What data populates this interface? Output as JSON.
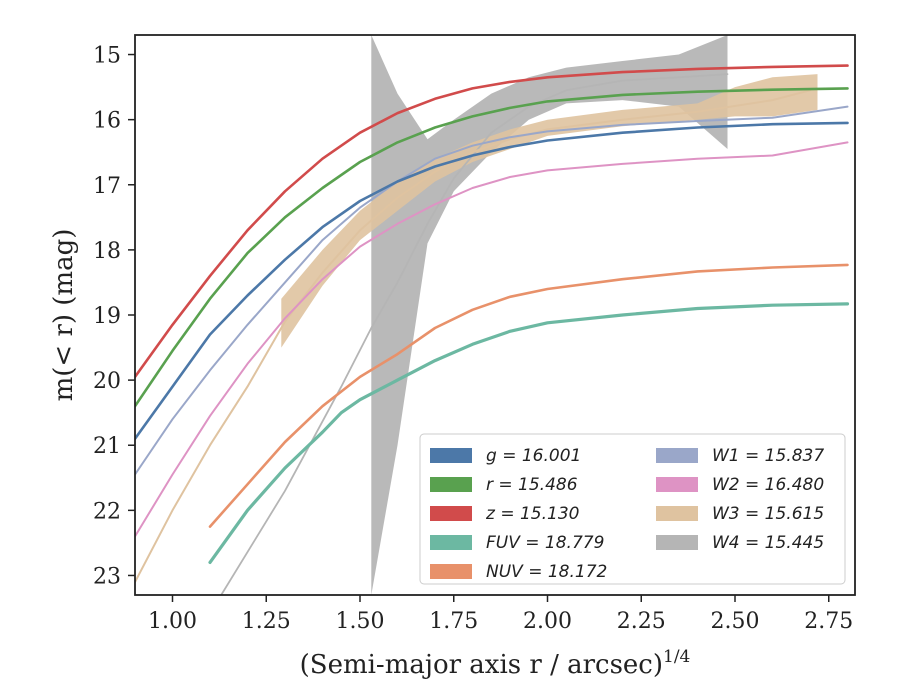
{
  "chart_data": {
    "type": "line",
    "xlabel": "(Semi-major axis r / arcsec)",
    "xlabel_exp": "1/4",
    "ylabel": "m(< r) (mag)",
    "xlim": [
      0.9,
      2.82
    ],
    "ylim": [
      23.3,
      14.7
    ],
    "y_inverted": true,
    "xticks": [
      "1.00",
      "1.25",
      "1.50",
      "1.75",
      "2.00",
      "2.25",
      "2.50",
      "2.75"
    ],
    "yticks": [
      "15",
      "16",
      "17",
      "18",
      "19",
      "20",
      "21",
      "22",
      "23"
    ],
    "grid": false,
    "legend_position": "lower-right",
    "legend_columns": 2,
    "series": [
      {
        "name": "g",
        "value": "16.001",
        "color": "#4c78a8",
        "x": [
          0.9,
          1.0,
          1.1,
          1.2,
          1.3,
          1.4,
          1.5,
          1.6,
          1.7,
          1.8,
          1.9,
          2.0,
          2.2,
          2.4,
          2.6,
          2.8
        ],
        "y": [
          20.9,
          20.1,
          19.3,
          18.7,
          18.15,
          17.65,
          17.25,
          16.95,
          16.72,
          16.55,
          16.42,
          16.32,
          16.2,
          16.12,
          16.07,
          16.05
        ]
      },
      {
        "name": "r",
        "value": "15.486",
        "color": "#59a14f",
        "x": [
          0.9,
          1.0,
          1.1,
          1.2,
          1.3,
          1.4,
          1.5,
          1.6,
          1.7,
          1.8,
          1.9,
          2.0,
          2.2,
          2.4,
          2.6,
          2.8
        ],
        "y": [
          20.4,
          19.55,
          18.75,
          18.05,
          17.5,
          17.05,
          16.65,
          16.35,
          16.12,
          15.95,
          15.82,
          15.72,
          15.62,
          15.57,
          15.54,
          15.52
        ]
      },
      {
        "name": "z",
        "value": "15.130",
        "color": "#d14b4b",
        "x": [
          0.9,
          1.0,
          1.1,
          1.2,
          1.3,
          1.4,
          1.5,
          1.6,
          1.7,
          1.8,
          1.9,
          2.0,
          2.2,
          2.4,
          2.6,
          2.8
        ],
        "y": [
          19.95,
          19.15,
          18.4,
          17.7,
          17.1,
          16.6,
          16.2,
          15.9,
          15.68,
          15.52,
          15.42,
          15.35,
          15.27,
          15.22,
          15.19,
          15.17
        ]
      },
      {
        "name": "FUV",
        "value": "18.779",
        "color": "#6cb8a2",
        "x": [
          1.1,
          1.2,
          1.3,
          1.4,
          1.45,
          1.5,
          1.6,
          1.7,
          1.8,
          1.9,
          2.0,
          2.2,
          2.4,
          2.6,
          2.8
        ],
        "y": [
          22.8,
          22.0,
          21.35,
          20.8,
          20.5,
          20.3,
          20.0,
          19.7,
          19.45,
          19.25,
          19.12,
          19.0,
          18.9,
          18.85,
          18.83
        ]
      },
      {
        "name": "NUV",
        "value": "18.172",
        "color": "#e8916a",
        "x": [
          1.1,
          1.2,
          1.3,
          1.4,
          1.5,
          1.6,
          1.7,
          1.8,
          1.9,
          2.0,
          2.2,
          2.4,
          2.6,
          2.8
        ],
        "y": [
          22.25,
          21.6,
          20.95,
          20.4,
          19.95,
          19.6,
          19.2,
          18.92,
          18.72,
          18.6,
          18.45,
          18.33,
          18.27,
          18.23
        ]
      },
      {
        "name": "W1",
        "value": "15.837",
        "color": "#9aa7c9",
        "x": [
          0.9,
          1.0,
          1.1,
          1.2,
          1.3,
          1.4,
          1.5,
          1.6,
          1.7,
          1.8,
          1.9,
          2.0,
          2.2,
          2.4,
          2.6,
          2.8
        ],
        "y": [
          21.45,
          20.6,
          19.85,
          19.15,
          18.5,
          17.85,
          17.35,
          16.95,
          16.6,
          16.4,
          16.27,
          16.18,
          16.08,
          16.02,
          15.97,
          15.8
        ]
      },
      {
        "name": "W2",
        "value": "16.480",
        "color": "#de93c4",
        "x": [
          0.9,
          1.0,
          1.1,
          1.2,
          1.3,
          1.4,
          1.5,
          1.6,
          1.7,
          1.8,
          1.9,
          2.0,
          2.2,
          2.4,
          2.6,
          2.8
        ],
        "y": [
          22.4,
          21.45,
          20.55,
          19.75,
          19.05,
          18.45,
          17.95,
          17.6,
          17.3,
          17.05,
          16.88,
          16.78,
          16.68,
          16.6,
          16.55,
          16.35
        ]
      },
      {
        "name": "W3",
        "value": "15.615",
        "color": "#dfc3a0",
        "x": [
          0.9,
          1.0,
          1.1,
          1.2,
          1.3,
          1.4,
          1.5,
          1.6,
          1.7,
          1.8,
          1.9,
          2.0,
          2.2,
          2.4,
          2.6,
          2.7
        ],
        "y": [
          23.1,
          22.0,
          21.0,
          20.1,
          19.1,
          18.35,
          17.7,
          17.2,
          16.8,
          16.5,
          16.3,
          16.15,
          16.0,
          15.88,
          15.7,
          15.55
        ]
      },
      {
        "name": "W4",
        "value": "15.445",
        "color": "#b5b5b5",
        "x": [
          1.13,
          1.3,
          1.45,
          1.53,
          1.6,
          1.68,
          1.75,
          1.85,
          1.95,
          2.05,
          2.2,
          2.35,
          2.48
        ],
        "y": [
          23.3,
          21.7,
          20.1,
          19.2,
          18.5,
          17.6,
          16.9,
          16.2,
          15.8,
          15.55,
          15.4,
          15.35,
          15.3
        ]
      }
    ]
  }
}
